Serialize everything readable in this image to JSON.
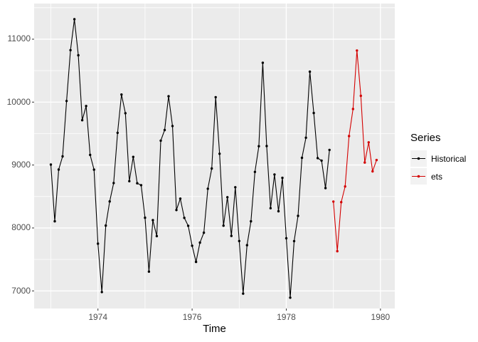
{
  "chart_data": {
    "type": "line",
    "title": "",
    "xlabel": "Time",
    "ylabel": "",
    "legend_title": "Series",
    "legend_position": "right",
    "grid": true,
    "panel_background": "#EBEBEB",
    "grid_color": "#FFFFFF",
    "tick_color": "#333333",
    "tick_label_color": "#4D4D4D",
    "legend_key_background": "#F2F2F2",
    "xlim": [
      1972.645,
      1980.304
    ],
    "ylim": [
      6720,
      11566
    ],
    "x_ticks": [
      1974,
      1976,
      1978,
      1980
    ],
    "x_minor_gridlines": [
      1973,
      1975,
      1977,
      1979
    ],
    "y_ticks": [
      7000,
      8000,
      9000,
      10000,
      11000
    ],
    "y_minor_gridlines": [
      7500,
      8500,
      9500,
      10500,
      11500
    ],
    "series": [
      {
        "name": "Historical",
        "color": "#000000",
        "start": 1973.0,
        "frequency": 12,
        "values": [
          9007,
          8106,
          8928,
          9137,
          10017,
          10826,
          11317,
          10744,
          9713,
          9938,
          9161,
          8927,
          7750,
          6981,
          8038,
          8422,
          8714,
          9512,
          10120,
          9823,
          8743,
          9129,
          8710,
          8680,
          8162,
          7306,
          8124,
          7870,
          9387,
          9556,
          10093,
          9620,
          8285,
          8466,
          8160,
          8034,
          7717,
          7461,
          7767,
          7925,
          8623,
          8945,
          10078,
          9179,
          8037,
          8488,
          7874,
          8647,
          7792,
          6957,
          7726,
          8106,
          8890,
          9299,
          10625,
          9302,
          8314,
          8850,
          8265,
          8796,
          7836,
          6892,
          7791,
          8192,
          9115,
          9434,
          10484,
          9827,
          9110,
          9070,
          8633,
          9240
        ]
      },
      {
        "name": "ets",
        "color": "#D40000",
        "start": 1979.0,
        "frequency": 12,
        "values": [
          8420,
          7630,
          8410,
          8660,
          9460,
          9890,
          10820,
          10100,
          9040,
          9360,
          8900,
          9080
        ]
      }
    ]
  }
}
